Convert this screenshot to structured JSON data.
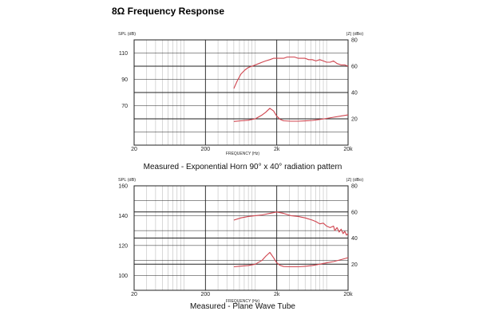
{
  "page_title": "8Ω Frequency Response",
  "colors": {
    "curve": "#d0454f",
    "grid_minor": "#bdbdbd",
    "grid_major": "#222222"
  },
  "chart_data": [
    {
      "type": "line",
      "caption": "Measured - Exponential Horn 90° x 40° radiation pattern",
      "xlabel": "FREQUENCY (Hz)",
      "ylabel_left": "SPL (dB)",
      "ylabel_right": "|Z| (dBo)",
      "xscale": "log",
      "xlim": [
        20,
        20000
      ],
      "x_ticks": [
        20,
        200,
        2000,
        20000
      ],
      "x_tick_labels": [
        "20",
        "200",
        "2k",
        "20k"
      ],
      "ylim_left": [
        40,
        120
      ],
      "y_ticks_left": [
        70,
        90,
        110
      ],
      "y_tick_labels_left": [
        "70",
        "90",
        "110"
      ],
      "ylim_right": [
        0,
        80
      ],
      "y_ticks_right": [
        20,
        40,
        60,
        80
      ],
      "y_tick_labels_right": [
        "20",
        "40",
        "60",
        "80"
      ],
      "grid": true,
      "series": [
        {
          "axis": "left",
          "x": [
            500,
            560,
            630,
            710,
            800,
            900,
            1000,
            1120,
            1250,
            1400,
            1600,
            1800,
            2000,
            2240,
            2500,
            2800,
            3150,
            3550,
            4000,
            4500,
            5000,
            5600,
            6300,
            7100,
            8000,
            9000,
            10000,
            11200,
            12500,
            14000,
            16000,
            18000,
            20000
          ],
          "y": [
            83,
            89,
            94,
            97,
            99,
            100,
            101,
            102,
            103,
            104,
            105,
            106,
            106,
            106,
            106,
            107,
            107,
            107,
            106,
            106,
            106,
            105,
            105,
            104,
            105,
            104,
            103,
            103,
            104,
            102,
            101,
            101,
            100
          ]
        },
        {
          "axis": "right",
          "x": [
            500,
            630,
            800,
            1000,
            1250,
            1400,
            1600,
            1800,
            2000,
            2240,
            2500,
            3150,
            4000,
            5000,
            6300,
            8000,
            10000,
            12500,
            16000,
            20000
          ],
          "y": [
            18,
            18.5,
            19,
            20,
            23,
            25,
            28,
            26,
            22,
            19.5,
            18.5,
            18.2,
            18.2,
            18.4,
            18.8,
            19.5,
            20.3,
            21.2,
            22.2,
            23
          ]
        }
      ]
    },
    {
      "type": "line",
      "caption": "Measured - Plane Wave Tube",
      "xlabel": "FREQUENCY (Hz)",
      "ylabel_left": "SPL (dB)",
      "ylabel_right": "|Z| (dBo)",
      "xscale": "log",
      "xlim": [
        20,
        20000
      ],
      "x_ticks": [
        20,
        200,
        2000,
        20000
      ],
      "x_tick_labels": [
        "20",
        "200",
        "2k",
        "20k"
      ],
      "ylim_left": [
        90,
        160
      ],
      "y_ticks_left": [
        100,
        120,
        140,
        160
      ],
      "y_tick_labels_left": [
        "100",
        "120",
        "140",
        "160"
      ],
      "ylim_right": [
        0,
        80
      ],
      "y_ticks_right": [
        20,
        40,
        60,
        80
      ],
      "y_tick_labels_right": [
        "20",
        "40",
        "60",
        "80"
      ],
      "grid": true,
      "series": [
        {
          "axis": "left",
          "x": [
            500,
            630,
            800,
            1000,
            1250,
            1600,
            2000,
            2500,
            3150,
            4000,
            5000,
            6300,
            7100,
            8000,
            9000,
            10000,
            11200,
            12500,
            13000,
            14000,
            15000,
            16000,
            17000,
            18000,
            19000,
            20000
          ],
          "y": [
            137,
            138.5,
            139.5,
            140,
            140.5,
            141.5,
            142.5,
            141.5,
            140,
            139.5,
            138.5,
            137,
            136,
            134.5,
            135,
            133,
            132,
            133,
            130,
            132,
            129,
            131,
            128,
            129.5,
            127,
            128
          ]
        },
        {
          "axis": "right",
          "x": [
            500,
            630,
            800,
            1000,
            1250,
            1400,
            1600,
            1800,
            2000,
            2240,
            2500,
            3150,
            4000,
            5000,
            6300,
            8000,
            10000,
            12500,
            16000,
            20000
          ],
          "y": [
            18,
            18.5,
            19,
            20,
            23,
            26,
            29,
            25,
            21,
            19,
            18.2,
            18,
            18,
            18.4,
            19,
            20,
            21,
            22,
            23.5,
            25
          ]
        }
      ]
    }
  ]
}
